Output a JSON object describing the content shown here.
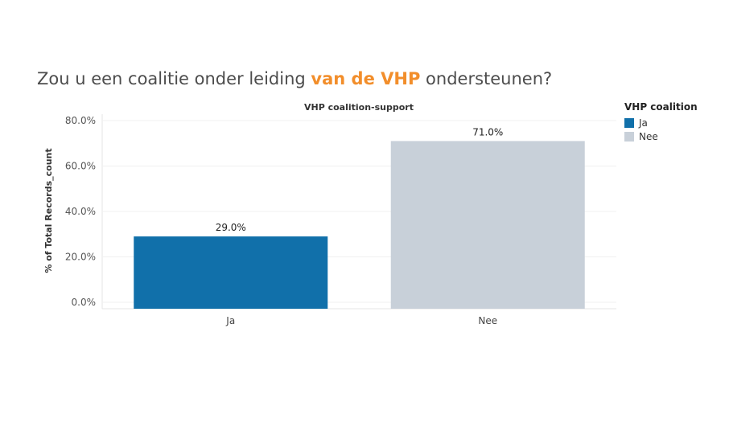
{
  "headline": {
    "before": "Zou u een coalitie onder leiding ",
    "highlight": "van de VHP",
    "after": " ondersteunen?"
  },
  "colors": {
    "highlight": "#f28e2b",
    "ja": "#1170aa",
    "nee": "#c8d0d9"
  },
  "legend": {
    "title": "VHP coalition",
    "items": [
      {
        "label": "Ja",
        "color": "#1170aa"
      },
      {
        "label": "Nee",
        "color": "#c8d0d9"
      }
    ]
  },
  "chart_data": {
    "type": "bar",
    "title": "VHP coalition-support",
    "ylabel": "% of Total Records_count",
    "xlabel": "",
    "categories": [
      "Ja",
      "Nee"
    ],
    "values": [
      29.0,
      71.0
    ],
    "data_labels": [
      "29.0%",
      "71.0%"
    ],
    "colors": [
      "#1170aa",
      "#c8d0d9"
    ],
    "ylim": [
      0,
      80
    ],
    "yticks": [
      0,
      20,
      40,
      60,
      80
    ],
    "ytick_labels": [
      "0.0%",
      "20.0%",
      "40.0%",
      "60.0%",
      "80.0%"
    ],
    "grid": true,
    "legend_position": "right"
  }
}
